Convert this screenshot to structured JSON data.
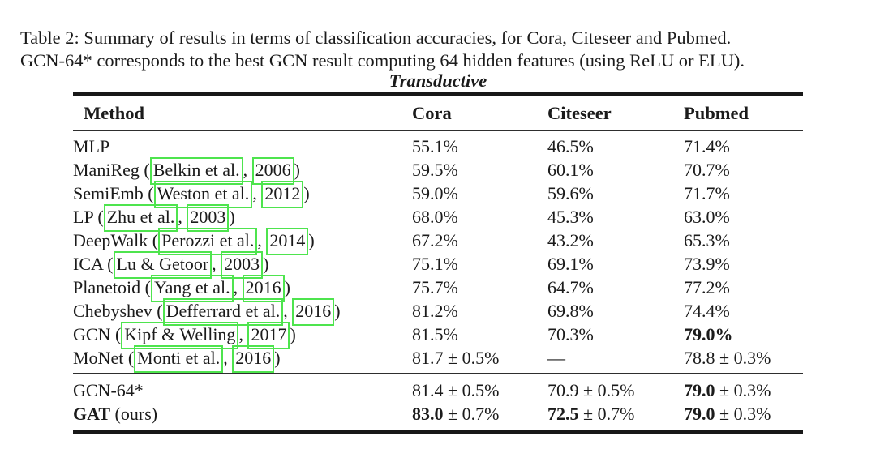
{
  "caption": {
    "line1": "Table 2:  Summary of results in terms of classification accuracies, for Cora, Citeseer and Pubmed.",
    "line2": "GCN-64* corresponds to the best GCN result computing 64 hidden features (using ReLU or ELU)."
  },
  "table": {
    "section_title": "Transductive",
    "columns": [
      "Method",
      "Cora",
      "Citeseer",
      "Pubmed"
    ],
    "link_box_color": "#4ee44e",
    "rows": [
      {
        "m_pre": "MLP",
        "cite_a": "",
        "m_mid": "",
        "cite_y": "",
        "m_post": "",
        "cora_b": "",
        "cora_r": "55.1%",
        "cs_b": "",
        "cs_r": "46.5%",
        "pm_b": "",
        "pm_r": "71.4%"
      },
      {
        "m_pre": "ManiReg (",
        "cite_a": "Belkin et al.",
        "m_mid": ", ",
        "cite_y": "2006",
        "m_post": ")",
        "cora_b": "",
        "cora_r": "59.5%",
        "cs_b": "",
        "cs_r": "60.1%",
        "pm_b": "",
        "pm_r": "70.7%"
      },
      {
        "m_pre": "SemiEmb (",
        "cite_a": "Weston et al.",
        "m_mid": ", ",
        "cite_y": "2012",
        "m_post": ")",
        "cora_b": "",
        "cora_r": "59.0%",
        "cs_b": "",
        "cs_r": "59.6%",
        "pm_b": "",
        "pm_r": "71.7%"
      },
      {
        "m_pre": "LP (",
        "cite_a": "Zhu et al.",
        "m_mid": ", ",
        "cite_y": "2003",
        "m_post": ")",
        "cora_b": "",
        "cora_r": "68.0%",
        "cs_b": "",
        "cs_r": "45.3%",
        "pm_b": "",
        "pm_r": "63.0%"
      },
      {
        "m_pre": "DeepWalk (",
        "cite_a": "Perozzi et al.",
        "m_mid": ", ",
        "cite_y": "2014",
        "m_post": ")",
        "cora_b": "",
        "cora_r": "67.2%",
        "cs_b": "",
        "cs_r": "43.2%",
        "pm_b": "",
        "pm_r": "65.3%"
      },
      {
        "m_pre": "ICA (",
        "cite_a": "Lu & Getoor",
        "m_mid": ", ",
        "cite_y": "2003",
        "m_post": ")",
        "cora_b": "",
        "cora_r": "75.1%",
        "cs_b": "",
        "cs_r": "69.1%",
        "pm_b": "",
        "pm_r": "73.9%"
      },
      {
        "m_pre": "Planetoid (",
        "cite_a": "Yang et al.",
        "m_mid": ", ",
        "cite_y": "2016",
        "m_post": ")",
        "cora_b": "",
        "cora_r": "75.7%",
        "cs_b": "",
        "cs_r": "64.7%",
        "pm_b": "",
        "pm_r": "77.2%"
      },
      {
        "m_pre": "Chebyshev (",
        "cite_a": "Defferrard et al.",
        "m_mid": ", ",
        "cite_y": "2016",
        "m_post": ")",
        "cora_b": "",
        "cora_r": "81.2%",
        "cs_b": "",
        "cs_r": "69.8%",
        "pm_b": "",
        "pm_r": "74.4%"
      },
      {
        "m_pre": "GCN (",
        "cite_a": "Kipf & Welling",
        "m_mid": ", ",
        "cite_y": "2017",
        "m_post": ")",
        "cora_b": "",
        "cora_r": "81.5%",
        "cs_b": "",
        "cs_r": "70.3%",
        "pm_b": "79.0%",
        "pm_r": ""
      },
      {
        "m_pre": "MoNet (",
        "cite_a": "Monti et al.",
        "m_mid": ", ",
        "cite_y": "2016",
        "m_post": ")",
        "cora_b": "",
        "cora_r": "81.7 ± 0.5%",
        "cs_b": "",
        "cs_r": "—",
        "pm_b": "",
        "pm_r": "78.8 ± 0.3%"
      }
    ],
    "footer_rows": [
      {
        "name_b": "",
        "name_r": "GCN-64*",
        "cora_b": "",
        "cora_r": "81.4 ± 0.5%",
        "cs_b": "",
        "cs_r": "70.9 ± 0.5%",
        "pm_b": "79.0",
        "pm_r": " ± 0.3%"
      },
      {
        "name_b": "GAT",
        "name_r": " (ours)",
        "cora_b": "83.0",
        "cora_r": " ± 0.7%",
        "cs_b": "72.5",
        "cs_r": " ± 0.7%",
        "pm_b": "79.0",
        "pm_r": " ± 0.3%"
      }
    ]
  }
}
